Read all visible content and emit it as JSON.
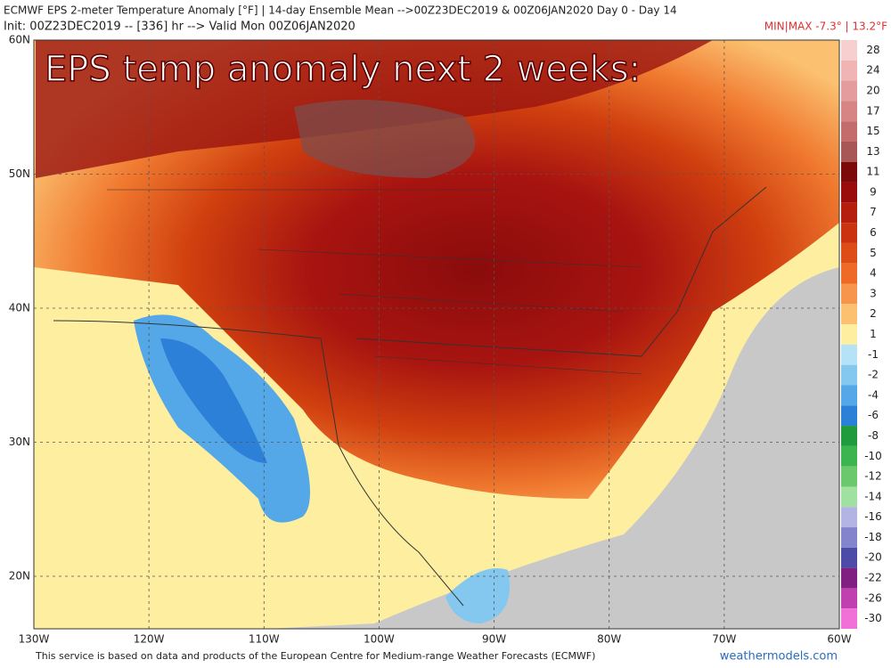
{
  "header": {
    "line1": "ECMWF EPS 2-meter Temperature Anomaly [°F] | 14-day Ensemble Mean -->00Z23DEC2019 & 00Z06JAN2020   Day 0 - Day 14",
    "line2": "Init: 00Z23DEC2019 -- [336] hr --> Valid Mon 00Z06JAN2020",
    "minmax": "MIN|MAX -7.3° | 13.2°F"
  },
  "overlay_title": "EPS temp anomaly next 2 weeks:",
  "lat_labels": [
    "60N",
    "50N",
    "40N",
    "30N",
    "20N"
  ],
  "lon_labels": [
    "130W",
    "120W",
    "110W",
    "100W",
    "90W",
    "80W",
    "70W",
    "60W"
  ],
  "colorbar": [
    {
      "label": 28,
      "color": "#f7cfcf"
    },
    {
      "label": 24,
      "color": "#f0b4b4"
    },
    {
      "label": 20,
      "color": "#e59c9c"
    },
    {
      "label": 17,
      "color": "#d78484"
    },
    {
      "label": 15,
      "color": "#c46c6c"
    },
    {
      "label": 13,
      "color": "#a85656"
    },
    {
      "label": 11,
      "color": "#7c0a0a"
    },
    {
      "label": 9,
      "color": "#9a0c0c"
    },
    {
      "label": 7,
      "color": "#b51d0c"
    },
    {
      "label": 6,
      "color": "#cb3210"
    },
    {
      "label": 5,
      "color": "#de4c18"
    },
    {
      "label": 4,
      "color": "#ee6a26"
    },
    {
      "label": 3,
      "color": "#f7954c"
    },
    {
      "label": 2,
      "color": "#fbc070"
    },
    {
      "label": 1,
      "color": "#fdeea0"
    },
    {
      "label": -1,
      "color": "#b6e2f8"
    },
    {
      "label": -2,
      "color": "#84c8f0"
    },
    {
      "label": -4,
      "color": "#54a8e8"
    },
    {
      "label": -6,
      "color": "#2c80d8"
    },
    {
      "label": -8,
      "color": "#1f9a3c"
    },
    {
      "label": -10,
      "color": "#3cb450"
    },
    {
      "label": -12,
      "color": "#6cc86c"
    },
    {
      "label": -14,
      "color": "#a0e0a0"
    },
    {
      "label": -16,
      "color": "#b4b4e4"
    },
    {
      "label": -18,
      "color": "#8484cc"
    },
    {
      "label": -20,
      "color": "#4c4ca8"
    },
    {
      "label": -22,
      "color": "#802080"
    },
    {
      "label": -26,
      "color": "#c040b0"
    },
    {
      "label": -30,
      "color": "#f070d8"
    }
  ],
  "footer": {
    "credit": "This service is based on data and products of the European Centre for Medium-range Weather Forecasts (ECMWF)",
    "site": "weathermodels.com"
  }
}
